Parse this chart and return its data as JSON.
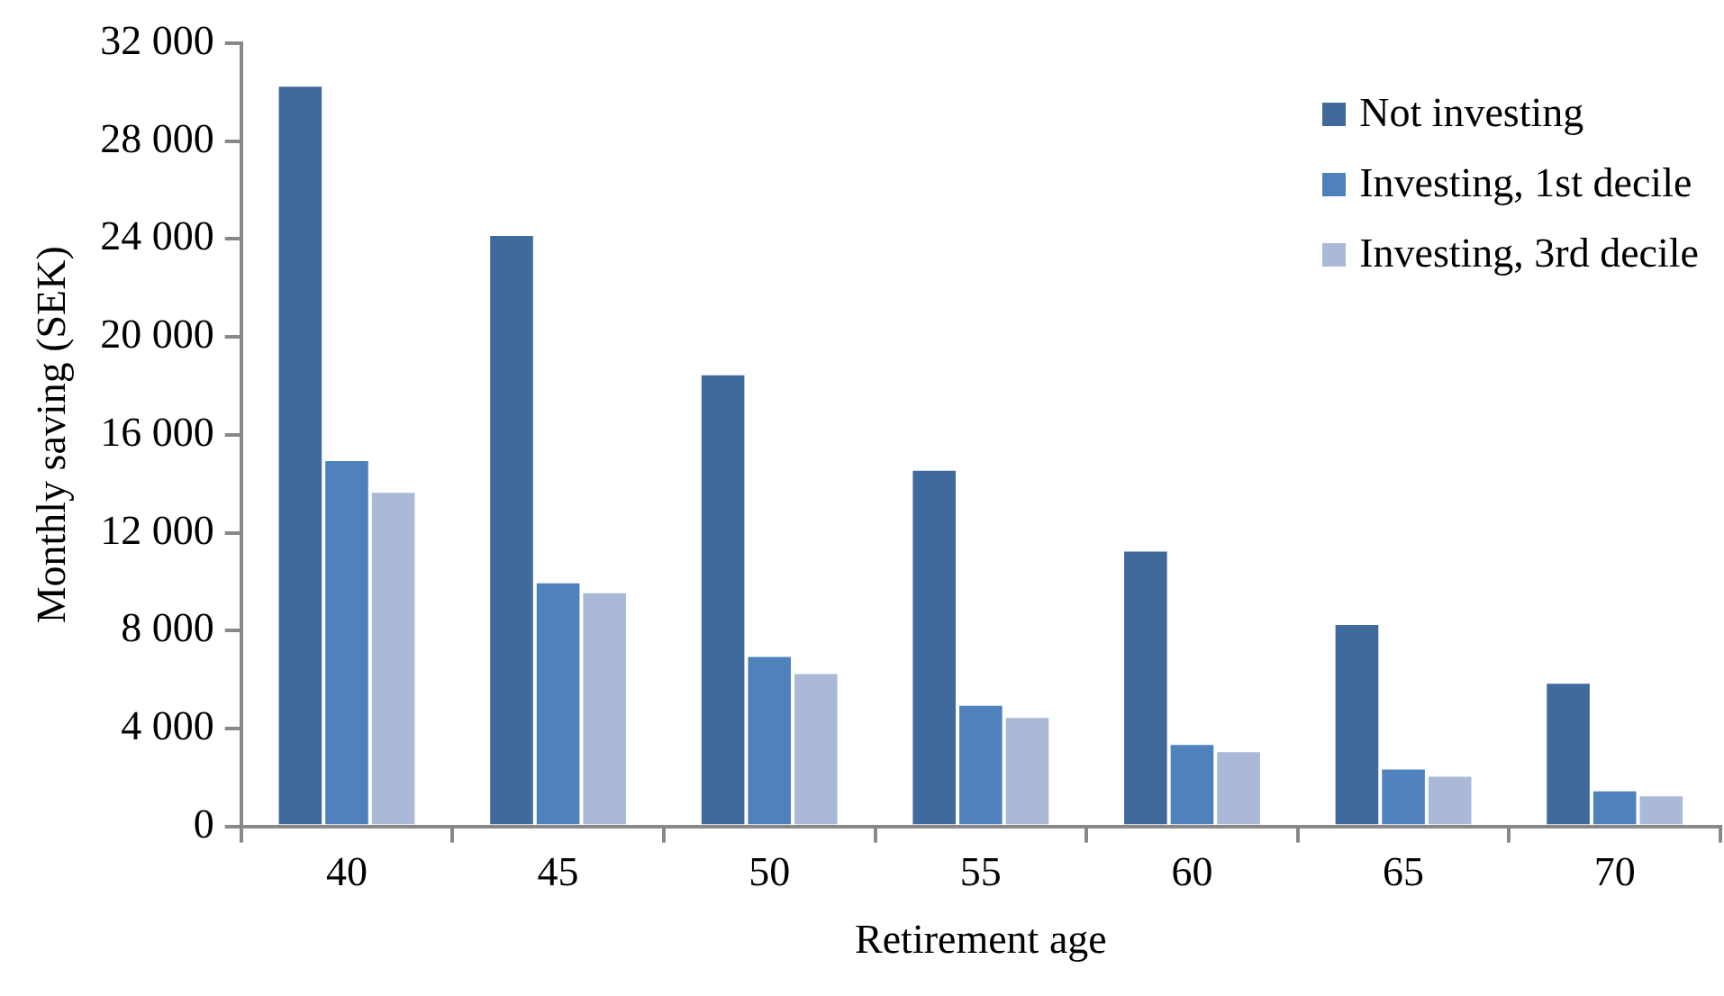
{
  "chart_data": {
    "type": "bar",
    "xlabel": "Retirement age",
    "ylabel": "Monthly saving (SEK)",
    "categories": [
      "40",
      "45",
      "50",
      "55",
      "60",
      "65",
      "70"
    ],
    "series": [
      {
        "name": "Not investing",
        "color": "#406a9b",
        "values": [
          30300,
          24200,
          18500,
          14600,
          11300,
          8300,
          5900
        ]
      },
      {
        "name": "Investing, 1st decile",
        "color": "#4f81bd",
        "values": [
          15000,
          10000,
          7000,
          5000,
          3400,
          2400,
          1500
        ]
      },
      {
        "name": "Investing, 3rd decile",
        "color": "#aab9d7",
        "values": [
          13700,
          9600,
          6300,
          4500,
          3100,
          2100,
          1300
        ]
      }
    ],
    "ylim": [
      0,
      32000
    ],
    "yticks": [
      0,
      {
        "value": 4000,
        "label": "4 000"
      },
      {
        "value": 8000,
        "label": "8 000"
      },
      {
        "value": 12000,
        "label": "12 000"
      },
      {
        "value": 16000,
        "label": "16 000"
      },
      {
        "value": 20000,
        "label": "20 000"
      },
      {
        "value": 24000,
        "label": "24 000"
      },
      {
        "value": 28000,
        "label": "28 000"
      },
      {
        "value": 32000,
        "label": "32 000"
      }
    ],
    "grid": false,
    "legend": "top right"
  }
}
